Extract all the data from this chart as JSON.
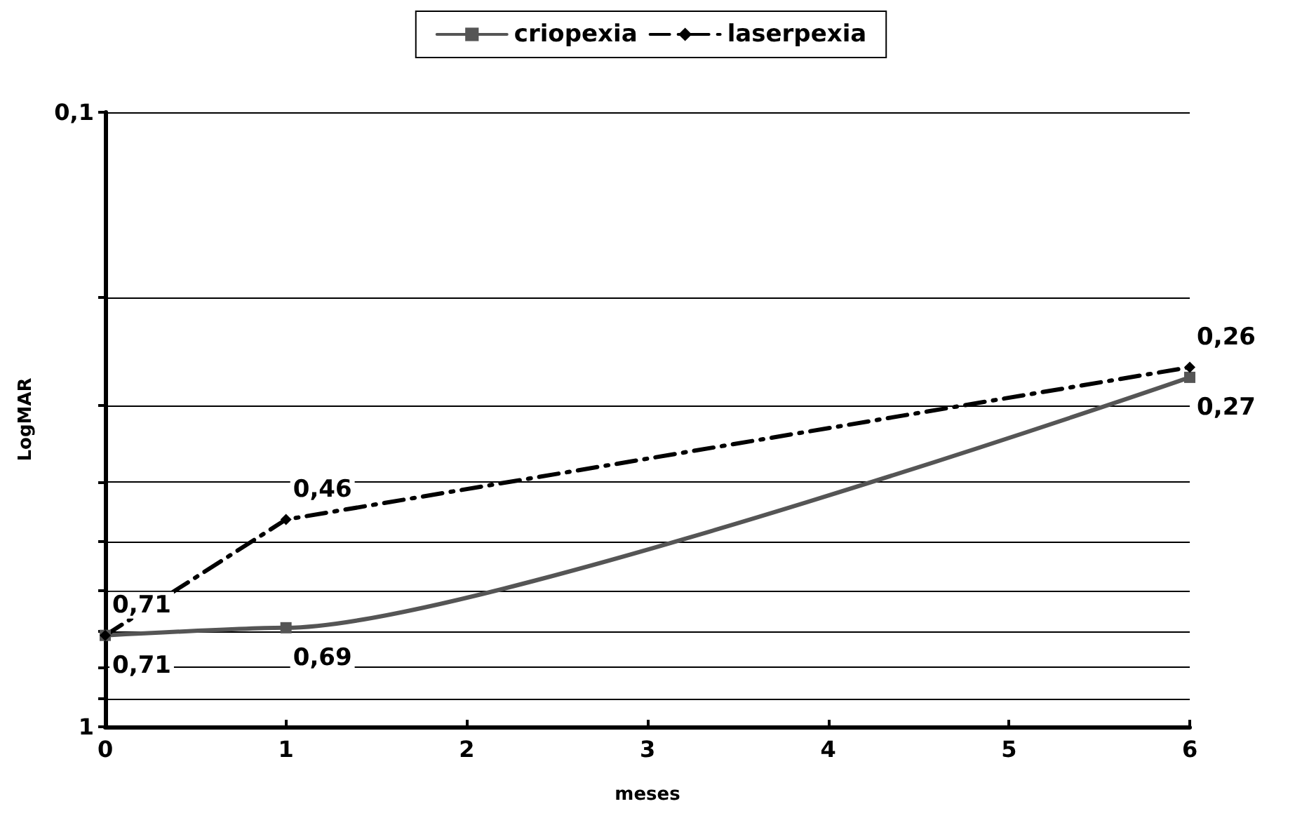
{
  "chart_data": {
    "type": "line",
    "xlabel": "meses",
    "ylabel": "LogMAR",
    "x": [
      0,
      1,
      6
    ],
    "series": [
      {
        "name": "criopexia",
        "color": "#555555",
        "values": [
          0.71,
          0.69,
          0.27
        ],
        "value_labels": [
          "0,71",
          "0,69",
          "0,27"
        ],
        "marker": "square",
        "line_style": "solid"
      },
      {
        "name": "laserpexia",
        "color": "#000000",
        "values": [
          0.71,
          0.46,
          0.26
        ],
        "value_labels": [
          "0,71",
          "0,46",
          "0,26"
        ],
        "marker": "diamond",
        "line_style": "dashed"
      }
    ],
    "xlim": [
      0,
      6
    ],
    "xticks": [
      0,
      1,
      2,
      3,
      4,
      5,
      6
    ],
    "ylim": [
      1,
      0.1
    ],
    "yticks": [
      {
        "value": 0.1,
        "label": "0,1"
      },
      {
        "value": 0.2,
        "label": null
      },
      {
        "value": 0.3,
        "label": null
      },
      {
        "value": 0.4,
        "label": null
      },
      {
        "value": 0.5,
        "label": null
      },
      {
        "value": 0.6,
        "label": null
      },
      {
        "value": 0.7,
        "label": null
      },
      {
        "value": 0.8,
        "label": null
      },
      {
        "value": 0.9,
        "label": null
      },
      {
        "value": 1,
        "label": "1"
      }
    ],
    "log": "y",
    "grid": "y",
    "legend": "top"
  }
}
